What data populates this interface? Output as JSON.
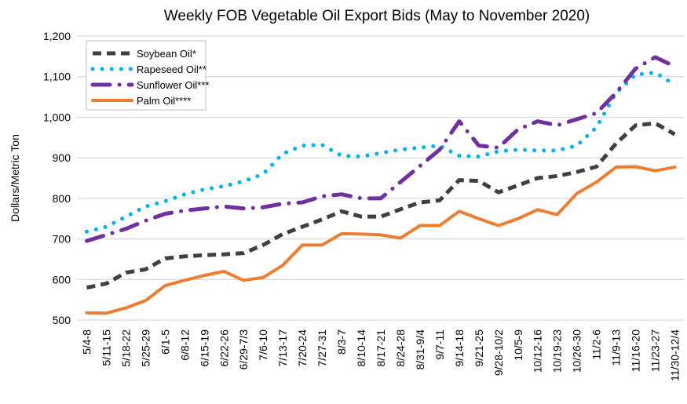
{
  "chart_data": {
    "type": "line",
    "title": "Weekly FOB Vegetable Oil Export Bids (May to November 2020)",
    "xlabel": "",
    "ylabel": "Dollars/Metric Ton",
    "ylim": [
      500,
      1200
    ],
    "yticks": [
      500,
      600,
      700,
      800,
      900,
      1000,
      1100,
      1200
    ],
    "ytick_labels": [
      "500",
      "600",
      "700",
      "800",
      "900",
      "1,000",
      "1,100",
      "1,200"
    ],
    "grid": true,
    "legend_placement": "top-left",
    "categories": [
      "5/4-8",
      "5/11-15",
      "5/18-22",
      "5/25-29",
      "6/1-5",
      "6/8-12",
      "6/15-19",
      "6/22-26",
      "6/29-7/3",
      "7/6-10",
      "7/13-17",
      "7/20-24",
      "7/27-31",
      "8/3-7",
      "8/10-14",
      "8/17-21",
      "8/24-28",
      "8/31-9/4",
      "9/7-11",
      "9/14-18",
      "9/21-25",
      "9/28-10/2",
      "10/5-9",
      "10/12-16",
      "10/19-23",
      "10/26-30",
      "11/2-6",
      "11/9-13",
      "11/16-20",
      "11/23-27",
      "11/30-12/4"
    ],
    "series": [
      {
        "name": "Soybean Oil*",
        "color": "#404040",
        "style": "dashed",
        "values": [
          580,
          590,
          617,
          625,
          652,
          657,
          660,
          662,
          665,
          685,
          712,
          730,
          748,
          768,
          755,
          755,
          773,
          790,
          795,
          845,
          843,
          815,
          832,
          850,
          855,
          865,
          878,
          935,
          980,
          985,
          958
        ]
      },
      {
        "name": "Rapeseed Oil**",
        "color": "#00b0f0",
        "style": "dotted",
        "values": [
          718,
          730,
          755,
          780,
          793,
          810,
          822,
          830,
          842,
          860,
          910,
          930,
          932,
          905,
          903,
          912,
          920,
          925,
          930,
          905,
          903,
          916,
          920,
          918,
          918,
          930,
          975,
          1060,
          1105,
          1110,
          1080
        ]
      },
      {
        "name": "Sunflower Oil***",
        "color": "#7030a0",
        "style": "dash-dot",
        "values": [
          695,
          710,
          725,
          745,
          762,
          770,
          775,
          780,
          775,
          778,
          787,
          790,
          805,
          810,
          800,
          800,
          840,
          880,
          920,
          990,
          930,
          925,
          970,
          990,
          980,
          995,
          1010,
          1060,
          1120,
          1148,
          1125
        ]
      },
      {
        "name": "Palm Oil****",
        "color": "#ed7d31",
        "style": "solid",
        "values": [
          518,
          517,
          530,
          548,
          585,
          598,
          610,
          620,
          598,
          605,
          635,
          685,
          685,
          713,
          712,
          710,
          702,
          733,
          733,
          768,
          750,
          733,
          750,
          772,
          760,
          812,
          840,
          877,
          878,
          868,
          877
        ]
      }
    ]
  }
}
